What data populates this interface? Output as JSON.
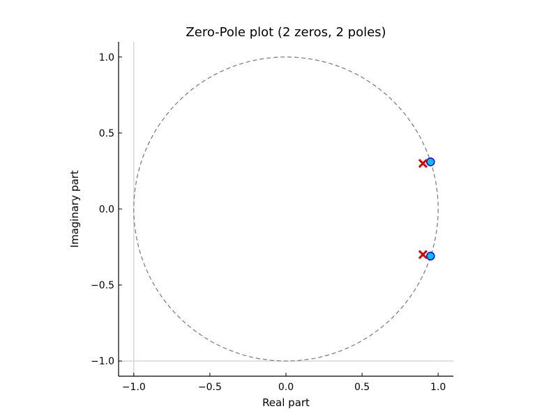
{
  "chart_data": {
    "type": "scatter",
    "title": "Zero-Pole plot (2 zeros, 2 poles)",
    "xlabel": "Real part",
    "ylabel": "Imaginary part",
    "xlim": [
      -1.1,
      1.1
    ],
    "ylim": [
      -1.1,
      1.1
    ],
    "xticks": [
      -1.0,
      -0.5,
      0.0,
      0.5,
      1.0
    ],
    "xtick_labels": [
      "−1.0",
      "−0.5",
      "0.0",
      "0.5",
      "1.0"
    ],
    "yticks": [
      -1.0,
      -0.5,
      0.0,
      0.5,
      1.0
    ],
    "ytick_labels": [
      "−1.0",
      "−0.5",
      "0.0",
      "0.5",
      "1.0"
    ],
    "grid": false,
    "legend": "none",
    "unit_circle": true,
    "reference_lines": {
      "x": -1.0,
      "y": -1.0
    },
    "series": [
      {
        "marker": "circle",
        "color": "#00bfff",
        "edge_color": "#0000cc",
        "x": [
          0.95,
          0.95
        ],
        "y": [
          0.31,
          -0.31
        ]
      },
      {
        "marker": "x",
        "color": "#dd0000",
        "x": [
          0.9,
          0.9
        ],
        "y": [
          0.3,
          -0.3
        ]
      }
    ]
  }
}
